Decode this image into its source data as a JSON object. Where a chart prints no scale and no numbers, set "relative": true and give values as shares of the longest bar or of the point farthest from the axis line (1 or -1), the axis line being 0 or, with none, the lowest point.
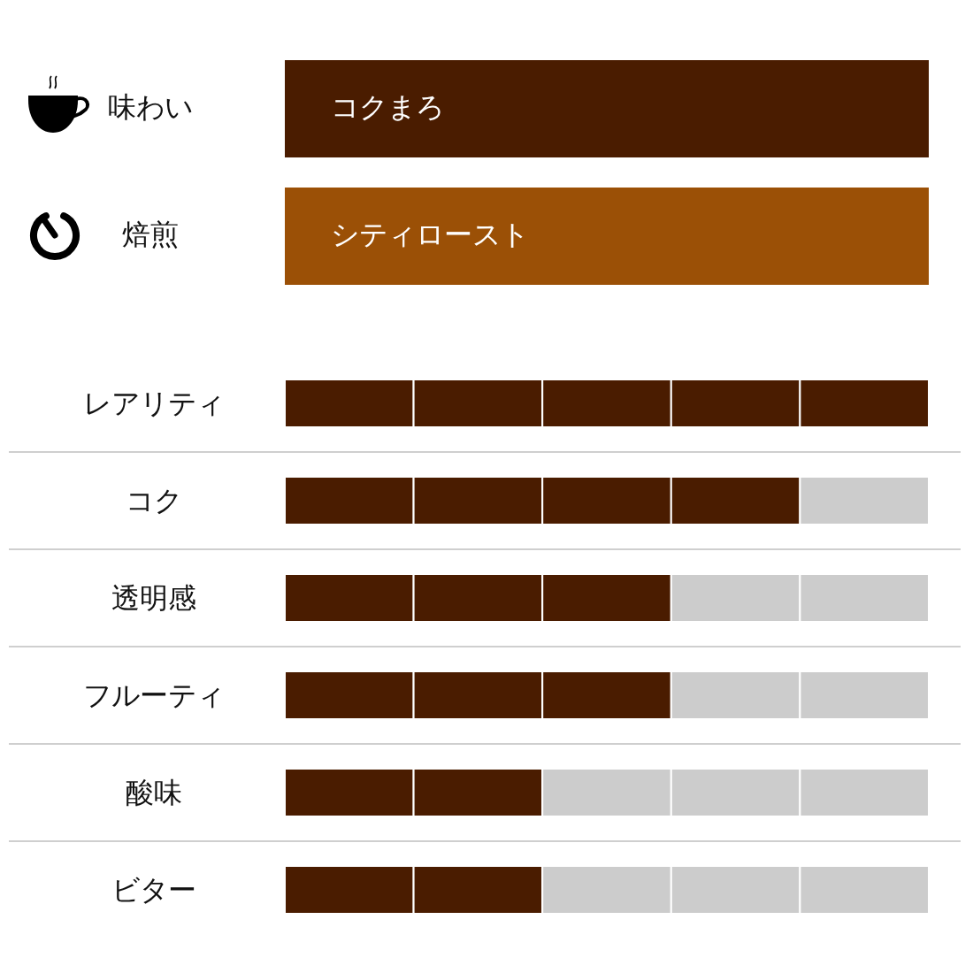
{
  "chart_data": [
    {
      "type": "other",
      "categories": [
        "味わい",
        "焙煎"
      ],
      "annotations": [
        "コクまろ",
        "シティロースト"
      ],
      "colors": [
        "#4a1c00",
        "#9b5006"
      ]
    },
    {
      "type": "bar",
      "orientation": "horizontal",
      "stacked": true,
      "relative": true,
      "categories": [
        "レアリティ",
        "コク",
        "透明感",
        "フルーティ",
        "酸味",
        "ビター"
      ],
      "series": [
        {
          "values": [
            0.2,
            0.2,
            0.2,
            0.2,
            0.2,
            0.2
          ],
          "colors": [
            "#4a1c00",
            "#4a1c00",
            "#4a1c00",
            "#4a1c00",
            "#4a1c00",
            "#4a1c00"
          ]
        },
        {
          "values": [
            0.2,
            0.2,
            0.2,
            0.2,
            0.2,
            0.2
          ],
          "colors": [
            "#4a1c00",
            "#4a1c00",
            "#4a1c00",
            "#4a1c00",
            "#4a1c00",
            "#4a1c00"
          ]
        },
        {
          "values": [
            0.2,
            0.2,
            0.2,
            0.2,
            0.2,
            0.2
          ],
          "colors": [
            "#4a1c00",
            "#4a1c00",
            "#4a1c00",
            "#4a1c00",
            "#cccccc",
            "#cccccc"
          ]
        },
        {
          "values": [
            0.2,
            0.2,
            0.2,
            0.2,
            0.2,
            0.2
          ],
          "colors": [
            "#4a1c00",
            "#4a1c00",
            "#cccccc",
            "#cccccc",
            "#cccccc",
            "#cccccc"
          ]
        },
        {
          "values": [
            0.2,
            0.2,
            0.2,
            0.2,
            0.2,
            0.2
          ],
          "colors": [
            "#4a1c00",
            "#cccccc",
            "#cccccc",
            "#cccccc",
            "#cccccc",
            "#cccccc"
          ]
        }
      ],
      "grid": "y"
    }
  ]
}
